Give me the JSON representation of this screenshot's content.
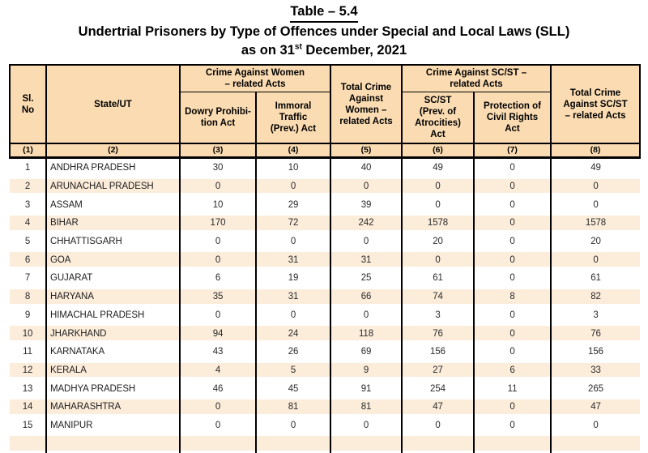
{
  "page": {
    "table_label": "Table – 5.4",
    "heading": "Undertrial Prisoners by Type of Offences under Special and Local Laws (SLL)",
    "date_prefix": "as on 31",
    "date_superscript": "st",
    "date_suffix": " December, 2021"
  },
  "table": {
    "columns": {
      "sl_no": "Sl.\nNo",
      "state_ut": "State/UT",
      "group_women": "Crime Against Women\n– related Acts",
      "dowry": "Dowry Prohibi-\ntion Act",
      "immoral": "Immoral\nTraffic\n(Prev.) Act",
      "total_women": "Total Crime\nAgainst\nWomen –\nrelated Acts",
      "group_scst": "Crime Against SC/ST –\nrelated Acts",
      "scst_poa": "SC/ST\n(Prev. of\nAtrocities)\nAct",
      "pcr": "Protection of\nCivil Rights\nAct",
      "total_scst": "Total Crime\nAgainst SC/ST\n– related Acts"
    },
    "index_row": [
      "(1)",
      "(2)",
      "(3)",
      "(4)",
      "(5)",
      "(6)",
      "(7)",
      "(8)"
    ],
    "rows": [
      {
        "sl": "1",
        "state": "ANDHRA PRADESH",
        "values": [
          "30",
          "10",
          "40",
          "49",
          "0",
          "49"
        ]
      },
      {
        "sl": "2",
        "state": "ARUNACHAL PRADESH",
        "values": [
          "0",
          "0",
          "0",
          "0",
          "0",
          "0"
        ]
      },
      {
        "sl": "3",
        "state": "ASSAM",
        "values": [
          "10",
          "29",
          "39",
          "0",
          "0",
          "0"
        ]
      },
      {
        "sl": "4",
        "state": "BIHAR",
        "values": [
          "170",
          "72",
          "242",
          "1578",
          "0",
          "1578"
        ]
      },
      {
        "sl": "5",
        "state": "CHHATTISGARH",
        "values": [
          "0",
          "0",
          "0",
          "20",
          "0",
          "20"
        ]
      },
      {
        "sl": "6",
        "state": "GOA",
        "values": [
          "0",
          "31",
          "31",
          "0",
          "0",
          "0"
        ]
      },
      {
        "sl": "7",
        "state": "GUJARAT",
        "values": [
          "6",
          "19",
          "25",
          "61",
          "0",
          "61"
        ]
      },
      {
        "sl": "8",
        "state": "HARYANA",
        "values": [
          "35",
          "31",
          "66",
          "74",
          "8",
          "82"
        ]
      },
      {
        "sl": "9",
        "state": "HIMACHAL PRADESH",
        "values": [
          "0",
          "0",
          "0",
          "3",
          "0",
          "3"
        ]
      },
      {
        "sl": "10",
        "state": "JHARKHAND",
        "values": [
          "94",
          "24",
          "118",
          "76",
          "0",
          "76"
        ]
      },
      {
        "sl": "11",
        "state": "KARNATAKA",
        "values": [
          "43",
          "26",
          "69",
          "156",
          "0",
          "156"
        ]
      },
      {
        "sl": "12",
        "state": "KERALA",
        "values": [
          "4",
          "5",
          "9",
          "27",
          "6",
          "33"
        ]
      },
      {
        "sl": "13",
        "state": "MADHYA PRADESH",
        "values": [
          "46",
          "45",
          "91",
          "254",
          "11",
          "265"
        ]
      },
      {
        "sl": "14",
        "state": "MAHARASHTRA",
        "values": [
          "0",
          "81",
          "81",
          "47",
          "0",
          "47"
        ]
      },
      {
        "sl": "15",
        "state": "MANIPUR",
        "values": [
          "0",
          "0",
          "0",
          "0",
          "0",
          "0"
        ]
      }
    ],
    "partial_next_row_visible": true
  },
  "colors": {
    "header_bg": "#fbdcb2",
    "stripe_bg": "#fcecda",
    "border": "#000000"
  }
}
